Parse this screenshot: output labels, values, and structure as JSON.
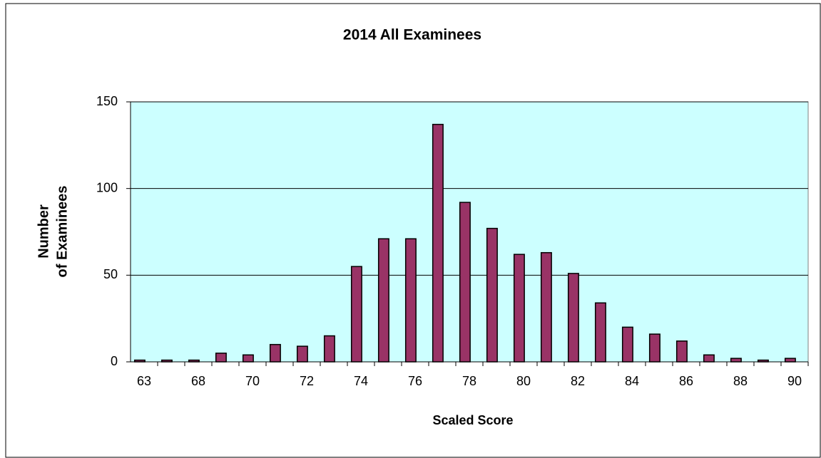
{
  "chart_data": {
    "type": "bar",
    "title": "2014 All Examinees",
    "xlabel": "Scaled Score",
    "ylabel": [
      "Number",
      "of Examinees"
    ],
    "categories": [
      "63",
      null,
      "68",
      null,
      "70",
      null,
      "72",
      null,
      "74",
      null,
      "76",
      null,
      "78",
      null,
      "80",
      null,
      "82",
      null,
      "84",
      null,
      "86",
      null,
      "88",
      null,
      "90"
    ],
    "values": [
      1,
      1,
      1,
      5,
      4,
      10,
      9,
      15,
      55,
      71,
      71,
      137,
      92,
      77,
      62,
      63,
      51,
      34,
      20,
      16,
      12,
      4,
      2,
      1,
      2
    ],
    "color": "#993366",
    "ylim": [
      0,
      150
    ],
    "yticks": [
      0,
      50,
      100,
      150
    ],
    "grid": true
  }
}
